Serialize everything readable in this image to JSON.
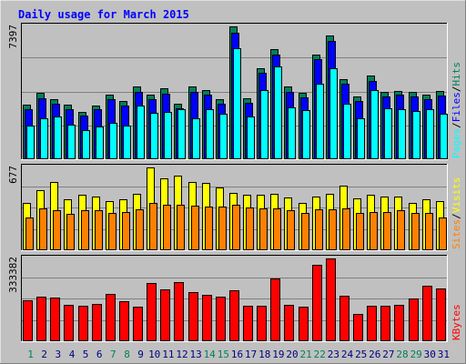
{
  "chart_data": {
    "type": "bar",
    "title": "Daily usage for March 2015",
    "colors": {
      "background": "#c0c0c0",
      "title": "#0000ff",
      "hits": "#00805c",
      "files": "#0000ff",
      "pages": "#00ffff",
      "visits": "#ffff00",
      "sites": "#ff8000",
      "kbytes": "#ff0000",
      "weekend_label": "#00805c",
      "weekday_label": "#000080"
    },
    "categories": [
      "1",
      "2",
      "3",
      "4",
      "5",
      "6",
      "7",
      "8",
      "9",
      "10",
      "11",
      "12",
      "13",
      "14",
      "15",
      "16",
      "17",
      "18",
      "19",
      "20",
      "21",
      "22",
      "23",
      "24",
      "25",
      "26",
      "27",
      "28",
      "29",
      "30",
      "31"
    ],
    "weekend_days": [
      "1",
      "7",
      "8",
      "14",
      "15",
      "21",
      "22",
      "28",
      "29"
    ],
    "panels": [
      {
        "id": "usage",
        "max_label": "7397",
        "ylim": [
          0,
          7397
        ],
        "legend": [
          {
            "text": "Pages",
            "color": "#00ffff"
          },
          {
            "text": "/",
            "color": "#000000"
          },
          {
            "text": "Files",
            "color": "#0000ff"
          },
          {
            "text": "/",
            "color": "#000000"
          },
          {
            "text": "Hits",
            "color": "#00805c"
          }
        ],
        "series": [
          {
            "name": "Hits",
            "color": "#00805c",
            "values": [
              3030,
              3670,
              3330,
              3030,
              2620,
              2980,
              3580,
              3230,
              4020,
              3580,
              3930,
              3070,
              4020,
              3850,
              3330,
              7397,
              3380,
              5050,
              6140,
              4020,
              3650,
              5840,
              6870,
              4460,
              3460,
              4630,
              3700,
              3800,
              3700,
              3550,
              3750
            ]
          },
          {
            "name": "Files",
            "color": "#0000ff",
            "values": [
              2780,
              3370,
              3080,
              2780,
              2410,
              2730,
              3310,
              2950,
              3720,
              3300,
              3620,
              2810,
              3720,
              3550,
              3080,
              7060,
              3130,
              4770,
              5840,
              3720,
              3400,
              5540,
              6560,
              4160,
              3210,
              4340,
              3450,
              3550,
              3450,
              3300,
              3500
            ]
          },
          {
            "name": "Pages",
            "color": "#00ffff",
            "values": [
              1850,
              2230,
              2330,
              1900,
              1600,
              1800,
              2000,
              1860,
              2980,
              2530,
              2580,
              2730,
              2230,
              2730,
              2480,
              6190,
              2330,
              3830,
              5150,
              2880,
              2680,
              4180,
              5050,
              3080,
              2250,
              3830,
              2830,
              2730,
              2630,
              2730,
              2480
            ]
          }
        ]
      },
      {
        "id": "visits",
        "max_label": "677",
        "ylim": [
          0,
          677
        ],
        "legend": [
          {
            "text": "Sites",
            "color": "#ff8000"
          },
          {
            "text": "/",
            "color": "#000000"
          },
          {
            "text": "Visits",
            "color": "#ffff00"
          }
        ],
        "series": [
          {
            "name": "Visits",
            "color": "#ffff00",
            "values": [
              380,
              490,
              560,
              410,
              455,
              440,
              400,
              410,
              460,
              677,
              590,
              610,
              560,
              550,
              510,
              470,
              450,
              450,
              460,
              430,
              380,
              440,
              460,
              530,
              420,
              450,
              440,
              440,
              380,
              410,
              400
            ]
          },
          {
            "name": "Sites",
            "color": "#ff8000",
            "values": [
              260,
              340,
              320,
              295,
              320,
              320,
              300,
              305,
              330,
              380,
              370,
              370,
              360,
              350,
              350,
              370,
              345,
              340,
              340,
              320,
              300,
              330,
              330,
              340,
              300,
              310,
              310,
              320,
              300,
              300,
              260
            ]
          }
        ]
      },
      {
        "id": "kbytes",
        "max_label": "333382",
        "ylim": [
          0,
          333382
        ],
        "legend": [
          {
            "text": "KBytes",
            "color": "#ff0000"
          }
        ],
        "series": [
          {
            "name": "KBytes",
            "color": "#ff0000",
            "values": [
              162000,
              178000,
              174000,
              146000,
              142000,
              148000,
              188000,
              158000,
              138000,
              235000,
              208000,
              236000,
              195000,
              185000,
              178000,
              202000,
              140000,
              142000,
              251000,
              143000,
              138000,
              307000,
              333382,
              182000,
              107000,
              142000,
              139000,
              146000,
              172000,
              221000,
              212000
            ]
          }
        ]
      }
    ]
  }
}
